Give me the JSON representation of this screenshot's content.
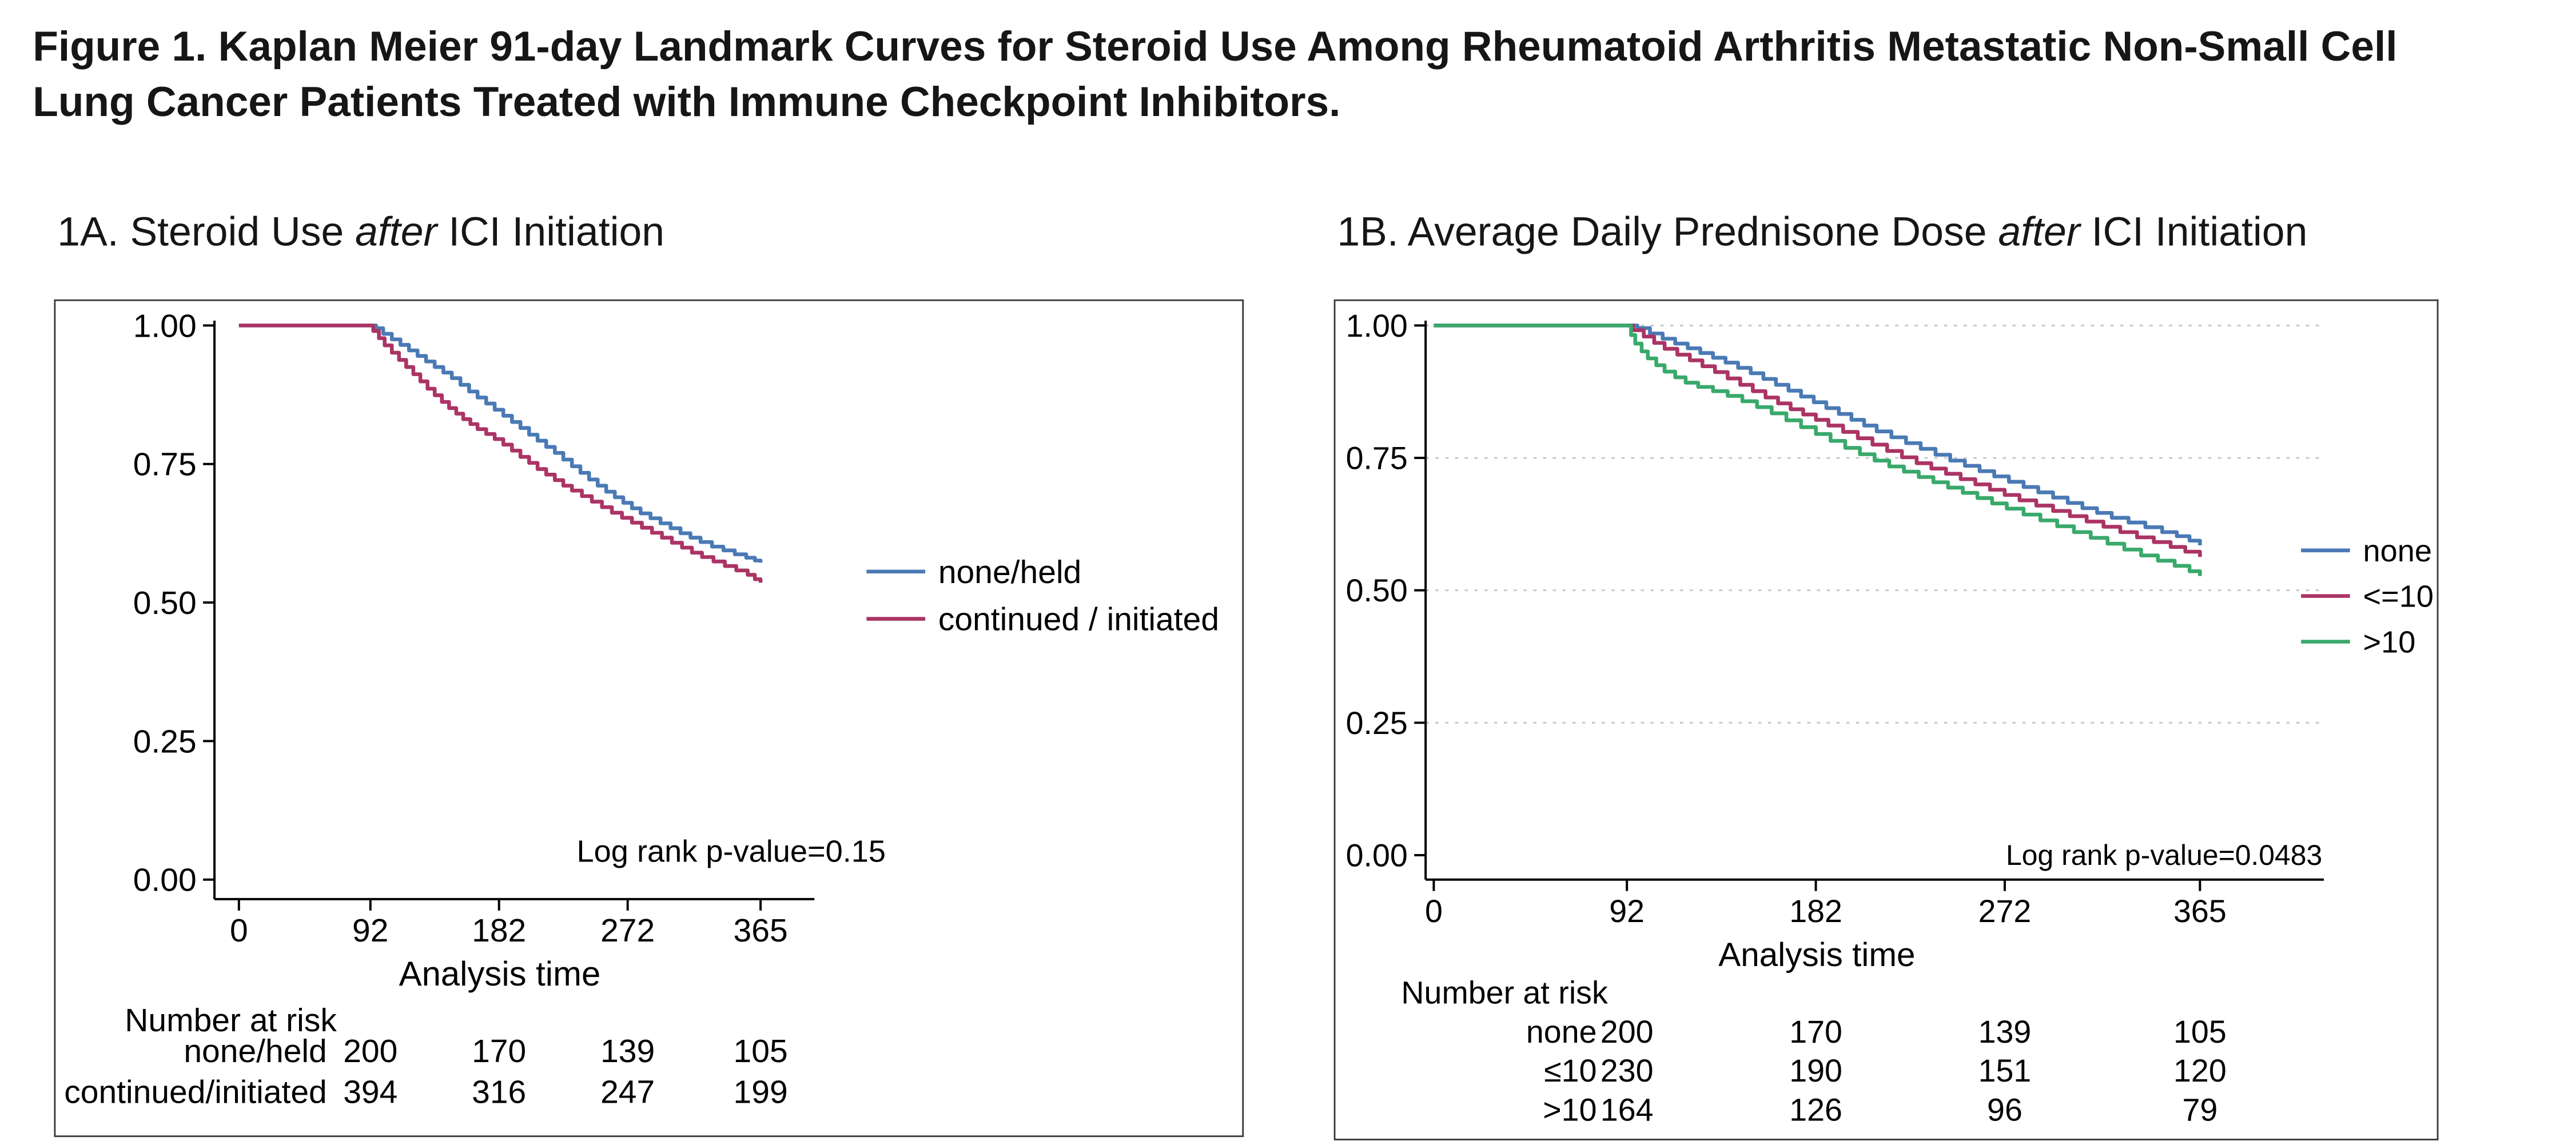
{
  "title": {
    "line1": "Figure 1. Kaplan Meier 91-day  Landmark Curves for Steroid Use Among Rheumatoid Arthritis Metastatic Non-Small Cell",
    "line2": "Lung Cancer Patients Treated with Immune Checkpoint Inhibitors."
  },
  "colors": {
    "blue": "#4a7ab5",
    "crimson": "#ab3465",
    "green": "#39a96b"
  },
  "chart_data": [
    {
      "id": "A",
      "type": "line",
      "chart_style": "kaplan-meier-step",
      "heading": {
        "pre": "1A. Steroid Use ",
        "em": "after",
        "post": " ICI Initiation"
      },
      "xlabel": "Analysis time",
      "annotation": "Log rank p-value=0.15",
      "xlim": [
        0,
        365
      ],
      "ylim": [
        0,
        1
      ],
      "xticks": [
        0,
        92,
        182,
        272,
        365
      ],
      "yticks": [
        0,
        0.25,
        0.5,
        0.75,
        1
      ],
      "grid": false,
      "legend_position": "right-of-plot",
      "series": [
        {
          "name": "none/held",
          "color": "#4a7ab5",
          "points": [
            [
              0,
              1.0
            ],
            [
              92,
              1.0
            ],
            [
              96,
              0.995
            ],
            [
              101,
              0.985
            ],
            [
              107,
              0.975
            ],
            [
              113,
              0.965
            ],
            [
              119,
              0.955
            ],
            [
              125,
              0.945
            ],
            [
              131,
              0.935
            ],
            [
              137,
              0.925
            ],
            [
              143,
              0.915
            ],
            [
              149,
              0.905
            ],
            [
              155,
              0.893
            ],
            [
              161,
              0.881
            ],
            [
              167,
              0.87
            ],
            [
              173,
              0.859
            ],
            [
              179,
              0.848
            ],
            [
              185,
              0.837
            ],
            [
              191,
              0.826
            ],
            [
              197,
              0.815
            ],
            [
              203,
              0.803
            ],
            [
              209,
              0.792
            ],
            [
              215,
              0.781
            ],
            [
              221,
              0.77
            ],
            [
              227,
              0.758
            ],
            [
              233,
              0.746
            ],
            [
              239,
              0.734
            ],
            [
              245,
              0.722
            ],
            [
              251,
              0.711
            ],
            [
              257,
              0.7
            ],
            [
              263,
              0.69
            ],
            [
              269,
              0.68
            ],
            [
              275,
              0.67
            ],
            [
              281,
              0.661
            ],
            [
              288,
              0.652
            ],
            [
              295,
              0.643
            ],
            [
              302,
              0.634
            ],
            [
              309,
              0.625
            ],
            [
              316,
              0.617
            ],
            [
              323,
              0.609
            ],
            [
              331,
              0.601
            ],
            [
              339,
              0.594
            ],
            [
              347,
              0.587
            ],
            [
              355,
              0.581
            ],
            [
              361,
              0.576
            ],
            [
              365,
              0.572
            ]
          ]
        },
        {
          "name": "continued / initiated",
          "color": "#ab3465",
          "points": [
            [
              0,
              1.0
            ],
            [
              92,
              1.0
            ],
            [
              94,
              0.99
            ],
            [
              98,
              0.977
            ],
            [
              102,
              0.964
            ],
            [
              107,
              0.951
            ],
            [
              112,
              0.938
            ],
            [
              117,
              0.925
            ],
            [
              122,
              0.912
            ],
            [
              127,
              0.899
            ],
            [
              132,
              0.886
            ],
            [
              137,
              0.874
            ],
            [
              142,
              0.862
            ],
            [
              147,
              0.851
            ],
            [
              152,
              0.841
            ],
            [
              157,
              0.831
            ],
            [
              162,
              0.822
            ],
            [
              167,
              0.813
            ],
            [
              173,
              0.804
            ],
            [
              179,
              0.795
            ],
            [
              185,
              0.785
            ],
            [
              191,
              0.774
            ],
            [
              197,
              0.763
            ],
            [
              203,
              0.752
            ],
            [
              209,
              0.741
            ],
            [
              215,
              0.731
            ],
            [
              221,
              0.721
            ],
            [
              227,
              0.711
            ],
            [
              233,
              0.702
            ],
            [
              240,
              0.692
            ],
            [
              247,
              0.682
            ],
            [
              254,
              0.672
            ],
            [
              261,
              0.662
            ],
            [
              268,
              0.653
            ],
            [
              275,
              0.644
            ],
            [
              282,
              0.635
            ],
            [
              289,
              0.626
            ],
            [
              296,
              0.617
            ],
            [
              303,
              0.608
            ],
            [
              310,
              0.599
            ],
            [
              317,
              0.59
            ],
            [
              324,
              0.582
            ],
            [
              332,
              0.574
            ],
            [
              340,
              0.566
            ],
            [
              348,
              0.558
            ],
            [
              356,
              0.55
            ],
            [
              361,
              0.542
            ],
            [
              365,
              0.536
            ]
          ]
        }
      ],
      "number_at_risk": {
        "header": "Number at risk",
        "times": [
          92,
          182,
          272,
          365
        ],
        "rows": [
          {
            "label": "none/held",
            "values": [
              200,
              170,
              139,
              105
            ]
          },
          {
            "label": "continued/initiated",
            "values": [
              394,
              316,
              247,
              199
            ]
          }
        ]
      }
    },
    {
      "id": "B",
      "type": "line",
      "chart_style": "kaplan-meier-step",
      "heading": {
        "pre": "1B. Average Daily Prednisone Dose ",
        "em": "after",
        "post": " ICI Initiation"
      },
      "xlabel": "Analysis time",
      "annotation": "Log rank p-value=0.0483",
      "xlim": [
        0,
        365
      ],
      "ylim": [
        0,
        1
      ],
      "xticks": [
        0,
        92,
        182,
        272,
        365
      ],
      "yticks": [
        0,
        0.25,
        0.5,
        0.75,
        1
      ],
      "grid": true,
      "legend_position": "right-of-plot",
      "series": [
        {
          "name": "none",
          "color": "#4a7ab5",
          "points": [
            [
              0,
              1.0
            ],
            [
              92,
              1.0
            ],
            [
              97,
              0.995
            ],
            [
              103,
              0.985
            ],
            [
              109,
              0.975
            ],
            [
              115,
              0.966
            ],
            [
              121,
              0.957
            ],
            [
              127,
              0.948
            ],
            [
              133,
              0.939
            ],
            [
              139,
              0.93
            ],
            [
              145,
              0.92
            ],
            [
              151,
              0.91
            ],
            [
              157,
              0.899
            ],
            [
              163,
              0.888
            ],
            [
              169,
              0.877
            ],
            [
              175,
              0.866
            ],
            [
              181,
              0.855
            ],
            [
              187,
              0.844
            ],
            [
              193,
              0.833
            ],
            [
              199,
              0.822
            ],
            [
              205,
              0.811
            ],
            [
              211,
              0.8
            ],
            [
              218,
              0.789
            ],
            [
              225,
              0.778
            ],
            [
              232,
              0.767
            ],
            [
              239,
              0.756
            ],
            [
              246,
              0.745
            ],
            [
              253,
              0.735
            ],
            [
              260,
              0.725
            ],
            [
              267,
              0.715
            ],
            [
              274,
              0.705
            ],
            [
              281,
              0.695
            ],
            [
              288,
              0.685
            ],
            [
              295,
              0.675
            ],
            [
              302,
              0.665
            ],
            [
              309,
              0.655
            ],
            [
              316,
              0.646
            ],
            [
              323,
              0.637
            ],
            [
              331,
              0.628
            ],
            [
              339,
              0.619
            ],
            [
              347,
              0.61
            ],
            [
              354,
              0.602
            ],
            [
              360,
              0.594
            ],
            [
              365,
              0.585
            ]
          ]
        },
        {
          "name": "<=10",
          "color": "#ab3465",
          "points": [
            [
              0,
              1.0
            ],
            [
              92,
              1.0
            ],
            [
              95,
              0.991
            ],
            [
              100,
              0.979
            ],
            [
              105,
              0.967
            ],
            [
              110,
              0.956
            ],
            [
              116,
              0.945
            ],
            [
              122,
              0.934
            ],
            [
              128,
              0.923
            ],
            [
              134,
              0.912
            ],
            [
              140,
              0.9
            ],
            [
              146,
              0.888
            ],
            [
              152,
              0.876
            ],
            [
              158,
              0.864
            ],
            [
              164,
              0.853
            ],
            [
              170,
              0.842
            ],
            [
              176,
              0.832
            ],
            [
              182,
              0.822
            ],
            [
              188,
              0.811
            ],
            [
              195,
              0.799
            ],
            [
              202,
              0.787
            ],
            [
              209,
              0.775
            ],
            [
              216,
              0.763
            ],
            [
              223,
              0.751
            ],
            [
              230,
              0.74
            ],
            [
              237,
              0.73
            ],
            [
              244,
              0.72
            ],
            [
              251,
              0.71
            ],
            [
              258,
              0.7
            ],
            [
              265,
              0.69
            ],
            [
              272,
              0.68
            ],
            [
              279,
              0.67
            ],
            [
              287,
              0.66
            ],
            [
              295,
              0.65
            ],
            [
              303,
              0.64
            ],
            [
              311,
              0.63
            ],
            [
              319,
              0.62
            ],
            [
              327,
              0.61
            ],
            [
              335,
              0.6
            ],
            [
              343,
              0.591
            ],
            [
              351,
              0.582
            ],
            [
              358,
              0.573
            ],
            [
              365,
              0.563
            ]
          ]
        },
        {
          "name": ">10",
          "color": "#39a96b",
          "points": [
            [
              0,
              1.0
            ],
            [
              92,
              1.0
            ],
            [
              94,
              0.982
            ],
            [
              96,
              0.966
            ],
            [
              99,
              0.951
            ],
            [
              102,
              0.938
            ],
            [
              106,
              0.925
            ],
            [
              110,
              0.913
            ],
            [
              115,
              0.902
            ],
            [
              120,
              0.892
            ],
            [
              126,
              0.884
            ],
            [
              133,
              0.876
            ],
            [
              140,
              0.867
            ],
            [
              147,
              0.857
            ],
            [
              154,
              0.846
            ],
            [
              161,
              0.834
            ],
            [
              168,
              0.821
            ],
            [
              175,
              0.808
            ],
            [
              182,
              0.795
            ],
            [
              189,
              0.782
            ],
            [
              196,
              0.769
            ],
            [
              203,
              0.757
            ],
            [
              210,
              0.745
            ],
            [
              217,
              0.734
            ],
            [
              224,
              0.724
            ],
            [
              231,
              0.714
            ],
            [
              238,
              0.704
            ],
            [
              245,
              0.694
            ],
            [
              252,
              0.684
            ],
            [
              259,
              0.674
            ],
            [
              266,
              0.664
            ],
            [
              273,
              0.654
            ],
            [
              281,
              0.643
            ],
            [
              289,
              0.632
            ],
            [
              297,
              0.621
            ],
            [
              305,
              0.61
            ],
            [
              313,
              0.599
            ],
            [
              321,
              0.588
            ],
            [
              329,
              0.577
            ],
            [
              337,
              0.566
            ],
            [
              345,
              0.556
            ],
            [
              353,
              0.546
            ],
            [
              360,
              0.536
            ],
            [
              365,
              0.527
            ]
          ]
        }
      ],
      "number_at_risk": {
        "header": "Number at risk",
        "times": [
          92,
          182,
          272,
          365
        ],
        "rows": [
          {
            "label": "none",
            "values": [
              200,
              170,
              139,
              105
            ]
          },
          {
            "label": "≤10",
            "values": [
              230,
              190,
              151,
              120
            ]
          },
          {
            "label": ">10",
            "values": [
              164,
              126,
              96,
              79
            ]
          }
        ]
      }
    }
  ]
}
